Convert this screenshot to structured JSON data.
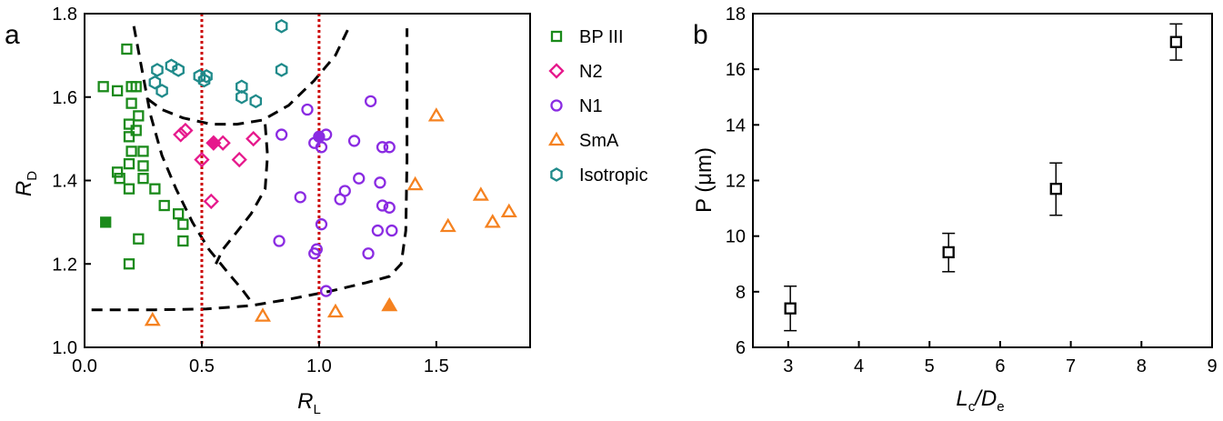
{
  "colors": {
    "bp3": "#1a8a1a",
    "n2": "#e6198c",
    "n1": "#8a2be2",
    "sma": "#f58220",
    "iso": "#1f8a8a",
    "boundary": "#000000",
    "threshold": "#cc0000"
  },
  "chart_data": [
    {
      "panel_label": "a",
      "type": "scatter",
      "xlabel": "R",
      "xlabel_sub": "L",
      "ylabel": "R",
      "ylabel_sub": "D",
      "xlim": [
        0.0,
        1.9
      ],
      "ylim": [
        1.0,
        1.8
      ],
      "xticks": [
        0.0,
        0.5,
        1.0,
        1.5
      ],
      "xtick_labels": [
        "0.0",
        "0.5",
        "1.0",
        "1.5"
      ],
      "yticks": [
        1.0,
        1.2,
        1.4,
        1.6,
        1.8
      ],
      "ytick_labels": [
        "1.0",
        "1.2",
        "1.4",
        "1.6",
        "1.8"
      ],
      "grid": false,
      "legend_position": "right",
      "series": [
        {
          "key": "bp3",
          "name": "BP III",
          "marker": "square",
          "points": [
            [
              0.18,
              1.715
            ],
            [
              0.08,
              1.625
            ],
            [
              0.14,
              1.615
            ],
            [
              0.2,
              1.625
            ],
            [
              0.22,
              1.625
            ],
            [
              0.2,
              1.585
            ],
            [
              0.23,
              1.555
            ],
            [
              0.19,
              1.535
            ],
            [
              0.22,
              1.52
            ],
            [
              0.19,
              1.505
            ],
            [
              0.2,
              1.47
            ],
            [
              0.25,
              1.47
            ],
            [
              0.19,
              1.44
            ],
            [
              0.25,
              1.435
            ],
            [
              0.14,
              1.42
            ],
            [
              0.15,
              1.405
            ],
            [
              0.19,
              1.38
            ],
            [
              0.3,
              1.38
            ],
            [
              0.25,
              1.405
            ],
            [
              0.34,
              1.34
            ],
            [
              0.4,
              1.32
            ],
            [
              0.42,
              1.295
            ],
            [
              0.23,
              1.26
            ],
            [
              0.42,
              1.255
            ],
            [
              0.19,
              1.2
            ]
          ],
          "filled_points": [
            [
              0.09,
              1.3
            ]
          ]
        },
        {
          "key": "n2",
          "name": "N2",
          "marker": "diamond",
          "points": [
            [
              0.43,
              1.52
            ],
            [
              0.41,
              1.51
            ],
            [
              0.5,
              1.45
            ],
            [
              0.59,
              1.49
            ],
            [
              0.72,
              1.5
            ],
            [
              0.66,
              1.45
            ],
            [
              0.54,
              1.35
            ]
          ],
          "filled_points": [
            [
              0.55,
              1.49
            ]
          ]
        },
        {
          "key": "n1",
          "name": "N1",
          "marker": "circle",
          "points": [
            [
              0.84,
              1.51
            ],
            [
              0.95,
              1.57
            ],
            [
              0.98,
              1.49
            ],
            [
              1.03,
              1.51
            ],
            [
              1.01,
              1.48
            ],
            [
              1.15,
              1.495
            ],
            [
              1.22,
              1.59
            ],
            [
              1.27,
              1.48
            ],
            [
              1.3,
              1.48
            ],
            [
              1.17,
              1.405
            ],
            [
              1.26,
              1.395
            ],
            [
              1.11,
              1.375
            ],
            [
              1.09,
              1.355
            ],
            [
              0.92,
              1.36
            ],
            [
              1.27,
              1.34
            ],
            [
              1.3,
              1.335
            ],
            [
              1.01,
              1.295
            ],
            [
              1.25,
              1.28
            ],
            [
              1.31,
              1.28
            ],
            [
              0.83,
              1.255
            ],
            [
              0.99,
              1.235
            ],
            [
              0.98,
              1.225
            ],
            [
              1.21,
              1.225
            ],
            [
              1.03,
              1.135
            ]
          ],
          "filled_points": [
            [
              1.0,
              1.505
            ]
          ]
        },
        {
          "key": "sma",
          "name": "SmA",
          "marker": "triangle",
          "points": [
            [
              1.5,
              1.555
            ],
            [
              1.41,
              1.39
            ],
            [
              1.69,
              1.365
            ],
            [
              1.81,
              1.325
            ],
            [
              1.74,
              1.3
            ],
            [
              1.55,
              1.29
            ],
            [
              0.29,
              1.065
            ],
            [
              0.76,
              1.075
            ],
            [
              1.07,
              1.085
            ]
          ],
          "filled_points": [
            [
              1.3,
              1.1
            ]
          ]
        },
        {
          "key": "iso",
          "name": "Isotropic",
          "marker": "hexagon",
          "points": [
            [
              0.84,
              1.77
            ],
            [
              0.31,
              1.665
            ],
            [
              0.37,
              1.675
            ],
            [
              0.4,
              1.665
            ],
            [
              0.84,
              1.665
            ],
            [
              0.49,
              1.65
            ],
            [
              0.52,
              1.65
            ],
            [
              0.51,
              1.64
            ],
            [
              0.3,
              1.635
            ],
            [
              0.33,
              1.615
            ],
            [
              0.67,
              1.625
            ],
            [
              0.67,
              1.6
            ],
            [
              0.73,
              1.59
            ]
          ],
          "filled_points": []
        }
      ],
      "boundaries": [
        [
          [
            0.21,
            1.77
          ],
          [
            0.24,
            1.68
          ],
          [
            0.28,
            1.56
          ],
          [
            0.33,
            1.46
          ],
          [
            0.39,
            1.38
          ],
          [
            0.46,
            1.3
          ],
          [
            0.53,
            1.235
          ],
          [
            0.61,
            1.18
          ],
          [
            0.67,
            1.14
          ],
          [
            0.71,
            1.11
          ]
        ],
        [
          [
            0.27,
            1.595
          ],
          [
            0.33,
            1.57
          ],
          [
            0.42,
            1.55
          ],
          [
            0.54,
            1.535
          ],
          [
            0.65,
            1.535
          ],
          [
            0.76,
            1.545
          ],
          [
            0.87,
            1.58
          ],
          [
            0.98,
            1.64
          ],
          [
            1.07,
            1.7
          ],
          [
            1.13,
            1.77
          ]
        ],
        [
          [
            0.77,
            1.535
          ],
          [
            0.78,
            1.46
          ],
          [
            0.77,
            1.38
          ],
          [
            0.71,
            1.32
          ],
          [
            0.64,
            1.27
          ],
          [
            0.59,
            1.235
          ],
          [
            0.56,
            1.2
          ]
        ],
        [
          [
            0.03,
            1.09
          ],
          [
            0.3,
            1.09
          ],
          [
            0.52,
            1.092
          ],
          [
            0.71,
            1.1
          ],
          [
            0.87,
            1.115
          ],
          [
            1.05,
            1.135
          ],
          [
            1.2,
            1.155
          ],
          [
            1.3,
            1.17
          ],
          [
            1.35,
            1.2
          ],
          [
            1.37,
            1.28
          ],
          [
            1.375,
            1.45
          ],
          [
            1.375,
            1.6
          ],
          [
            1.375,
            1.765
          ]
        ]
      ],
      "thresholds": [
        0.5,
        1.0
      ]
    },
    {
      "panel_label": "b",
      "type": "scatter",
      "xlabel": "L",
      "xlabel_sub1": "c",
      "xlabel_mid": "/D",
      "xlabel_sub2": "e",
      "ylabel": "P (μm)",
      "xlim": [
        2.5,
        9
      ],
      "ylim": [
        6,
        18
      ],
      "xticks": [
        3,
        4,
        5,
        6,
        7,
        8,
        9
      ],
      "yticks": [
        6,
        8,
        10,
        12,
        14,
        16,
        18
      ],
      "grid": false,
      "x": [
        3.03,
        5.27,
        6.79,
        8.49
      ],
      "y": [
        7.4,
        9.42,
        11.7,
        16.98
      ],
      "err_low": [
        0.8,
        0.7,
        0.95,
        0.65
      ],
      "err_high": [
        0.8,
        0.68,
        0.93,
        0.65
      ]
    }
  ]
}
